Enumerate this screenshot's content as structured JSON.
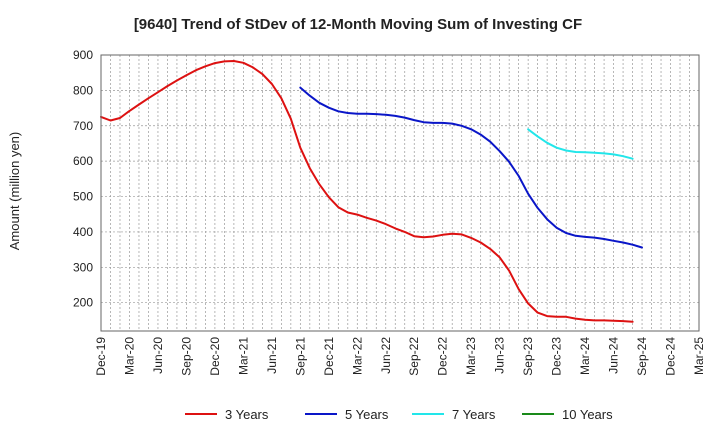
{
  "chart_data": {
    "type": "line",
    "title": "[9640]  Trend of StDev of 12-Month Moving Sum of Investing CF",
    "ylabel": "Amount (million yen)",
    "xlabel": "",
    "ylim": [
      120,
      900
    ],
    "yticks": [
      200,
      300,
      400,
      500,
      600,
      700,
      800,
      900
    ],
    "x_tick_labels": [
      "Dec-19",
      "Mar-20",
      "Jun-20",
      "Sep-20",
      "Dec-20",
      "Mar-21",
      "Jun-21",
      "Sep-21",
      "Dec-21",
      "Mar-22",
      "Jun-22",
      "Sep-22",
      "Dec-22",
      "Mar-23",
      "Jun-23",
      "Sep-23",
      "Dec-23",
      "Mar-24",
      "Jun-24",
      "Sep-24",
      "Dec-24",
      "Mar-25"
    ],
    "grid": true,
    "legend_position": "bottom",
    "series": [
      {
        "name": "3 Years",
        "color": "#dd1111",
        "start_index": 0,
        "values": [
          725,
          715,
          722,
          742,
          760,
          778,
          795,
          812,
          828,
          843,
          857,
          868,
          877,
          882,
          883,
          878,
          865,
          846,
          818,
          778,
          720,
          638,
          580,
          535,
          498,
          470,
          455,
          449,
          440,
          432,
          422,
          410,
          400,
          388,
          385,
          387,
          392,
          395,
          393,
          383,
          370,
          352,
          328,
          290,
          238,
          198,
          172,
          162,
          160,
          160,
          155,
          152,
          150,
          150,
          149,
          148,
          146
        ]
      },
      {
        "name": "5 Years",
        "color": "#0a16c8",
        "start_index": 21,
        "values": [
          808,
          785,
          765,
          751,
          741,
          736,
          734,
          734,
          733,
          731,
          728,
          723,
          716,
          710,
          708,
          708,
          706,
          700,
          690,
          675,
          655,
          628,
          598,
          558,
          508,
          468,
          436,
          412,
          397,
          389,
          386,
          384,
          380,
          375,
          370,
          364,
          356
        ]
      },
      {
        "name": "7 Years",
        "color": "#22e6ea",
        "start_index": 45,
        "values": [
          690,
          670,
          652,
          638,
          630,
          626,
          625,
          624,
          622,
          619,
          614,
          607
        ]
      },
      {
        "name": "10 Years",
        "color": "#1a8a1a",
        "start_index": 0,
        "values": []
      }
    ]
  }
}
